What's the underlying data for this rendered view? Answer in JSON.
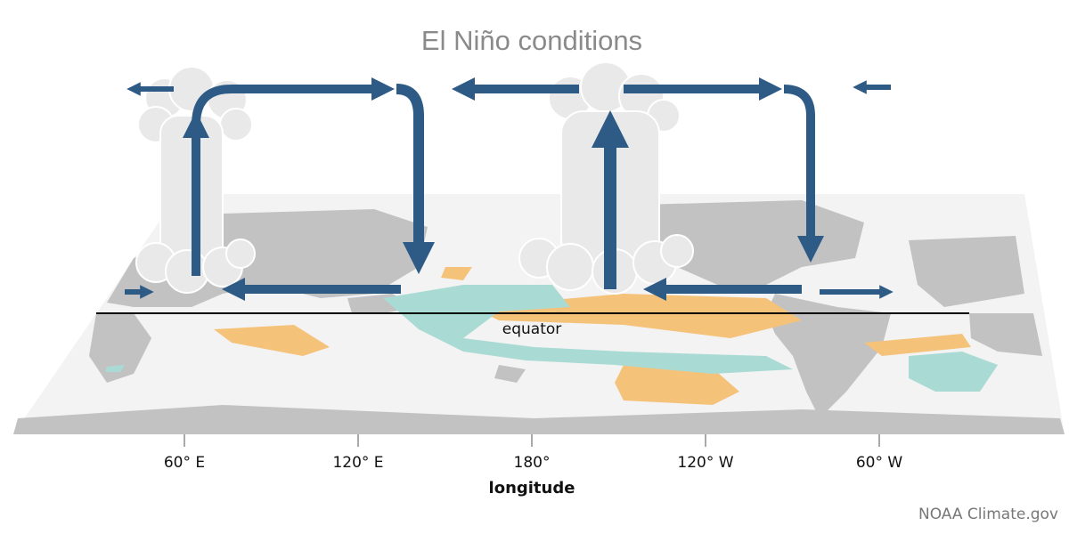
{
  "header": {
    "title": "El Niño conditions"
  },
  "map": {
    "equator_label": "equator",
    "longitude_ticks": [
      "60° E",
      "120° E",
      "180°",
      "120° W",
      "60° W"
    ],
    "axis_label": "longitude"
  },
  "footer": {
    "credit": "NOAA Climate.gov"
  }
}
